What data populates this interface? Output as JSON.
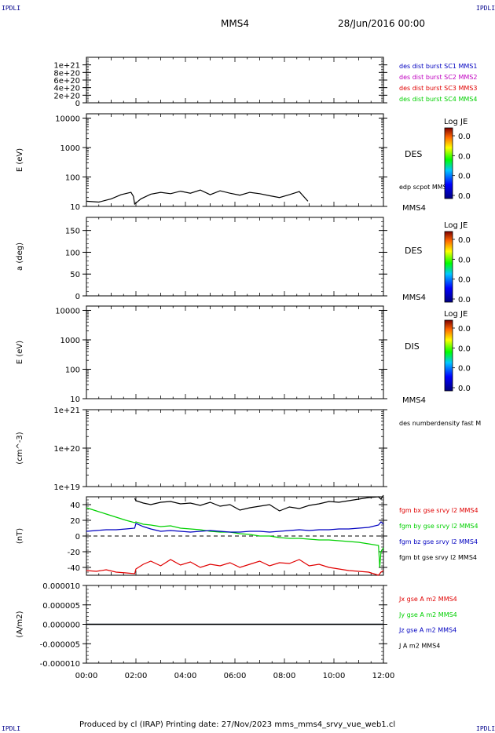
{
  "corners": {
    "tl": "IPDLI",
    "tr": "IPDLI",
    "bl": "IPDLI",
    "br": "IPDLI"
  },
  "header": {
    "spacecraft": "MMS4",
    "date": "28/Jun/2016 00:00"
  },
  "footer": {
    "text": "Produced by cl (IRAP)   Printing date: 27/Nov/2023   mms_mms4_srvy_vue_web1.cl"
  },
  "colors": {
    "red": "#e00000",
    "green": "#00d000",
    "blue": "#0000c0",
    "magenta": "#c000c0",
    "black": "#000000"
  },
  "time_axis": {
    "ticks": [
      "00:00",
      "02:00",
      "04:00",
      "06:00",
      "08:00",
      "10:00",
      "12:00"
    ],
    "range_hours": [
      0,
      12
    ]
  },
  "chart_data": [
    {
      "type": "line",
      "panel": "des-dist-burst",
      "ylim": [
        0,
        1.2e+21
      ],
      "ytick_labels": [
        "1e+21",
        "8e+20",
        "6e+20",
        "4e+20",
        "2e+20",
        "0"
      ],
      "ytick_values": [
        1e+21,
        8e+20,
        6e+20,
        4e+20,
        2e+20,
        0
      ],
      "reference_line": 0,
      "legend": [
        {
          "label": "des dist burst SC1 MMS1",
          "color": "#0000c0"
        },
        {
          "label": "des dist burst SC2 MMS2",
          "color": "#c000c0"
        },
        {
          "label": "des dist burst SC3 MMS3",
          "color": "#e00000"
        },
        {
          "label": "des dist burst SC4 MMS4",
          "color": "#00d000"
        }
      ]
    },
    {
      "type": "heatmap",
      "panel": "des-energy",
      "ylabel": "E (eV)",
      "yscale": "log",
      "ylim": [
        10,
        14000
      ],
      "ytick_labels": [
        "10000",
        "1000",
        "100",
        "10"
      ],
      "ytick_values": [
        10000,
        1000,
        100,
        10
      ],
      "label": "DES",
      "spacecraft": "MMS4",
      "colorbar": {
        "title": "Log JE",
        "ticks": [
          "0.0",
          "0.0",
          "0.0",
          "0.0"
        ]
      },
      "overlay": {
        "label": "edp scpot MMS4",
        "time_range_hours": [
          0,
          8.95
        ],
        "x_hours": [
          0,
          0.5,
          1.0,
          1.4,
          1.8,
          1.9,
          1.95,
          2.0,
          2.2,
          2.6,
          3.0,
          3.4,
          3.8,
          4.2,
          4.6,
          5.0,
          5.4,
          5.8,
          6.2,
          6.6,
          7.0,
          7.4,
          7.8,
          8.2,
          8.6,
          8.95
        ],
        "y_ev": [
          15,
          14,
          18,
          25,
          30,
          22,
          12,
          13,
          18,
          26,
          30,
          27,
          33,
          28,
          36,
          25,
          34,
          28,
          24,
          30,
          27,
          23,
          20,
          25,
          32,
          15
        ]
      }
    },
    {
      "type": "heatmap",
      "panel": "des-pitch",
      "ylabel": "a (deg)",
      "ylim": [
        0,
        180
      ],
      "ytick_labels": [
        "150",
        "100",
        "50",
        "0"
      ],
      "ytick_values": [
        150,
        100,
        50,
        0
      ],
      "label": "DES",
      "spacecraft": "MMS4",
      "colorbar": {
        "title": "Log JE",
        "ticks": [
          "0.0",
          "0.0",
          "0.0",
          "0.0"
        ]
      }
    },
    {
      "type": "heatmap",
      "panel": "dis-energy",
      "ylabel": "E (eV)",
      "yscale": "log",
      "ylim": [
        10,
        14000
      ],
      "ytick_labels": [
        "10000",
        "1000",
        "100",
        "10"
      ],
      "ytick_values": [
        10000,
        1000,
        100,
        10
      ],
      "label": "DIS",
      "spacecraft": "MMS4",
      "colorbar": {
        "title": "Log JE",
        "ticks": [
          "0.0",
          "0.0",
          "0.0",
          "0.0"
        ]
      }
    },
    {
      "type": "line",
      "panel": "density",
      "ylabel": "(cm^-3)",
      "yscale": "log",
      "ylim": [
        1e+19,
        1e+21
      ],
      "ytick_labels": [
        "1e+21",
        "1e+20",
        "1e+19"
      ],
      "ytick_values": [
        1e+21,
        1e+20,
        1e+19
      ],
      "legend": [
        {
          "label": "des numberdensity fast M",
          "color": "#000000"
        }
      ]
    },
    {
      "type": "line",
      "panel": "fgm",
      "ylabel": "(nT)",
      "ylim": [
        -50,
        50
      ],
      "ytick_labels": [
        "40",
        "20",
        "0",
        "-20",
        "-40"
      ],
      "ytick_values": [
        40,
        20,
        0,
        -20,
        -40
      ],
      "reference_line": 0,
      "series": [
        {
          "name": "fgm bx gse srvy l2 MMS4",
          "color": "#e00000",
          "x": [
            0,
            0.4,
            0.8,
            1.2,
            1.6,
            1.95,
            2.0,
            2.3,
            2.6,
            3.0,
            3.4,
            3.8,
            4.2,
            4.6,
            5.0,
            5.4,
            5.8,
            6.2,
            6.6,
            7.0,
            7.4,
            7.8,
            8.2,
            8.6,
            9.0,
            9.4,
            9.8,
            10.2,
            10.6,
            11.0,
            11.4,
            11.8,
            11.9,
            12.0
          ],
          "y": [
            -44,
            -45,
            -43,
            -46,
            -47,
            -48,
            -42,
            -36,
            -32,
            -38,
            -30,
            -37,
            -33,
            -40,
            -36,
            -38,
            -34,
            -40,
            -36,
            -32,
            -38,
            -34,
            -35,
            -30,
            -38,
            -36,
            -40,
            -42,
            -44,
            -45,
            -46,
            -50,
            -46,
            -44
          ]
        },
        {
          "name": "fgm by gse srvy l2 MMS4",
          "color": "#00d000",
          "x": [
            0,
            0.4,
            0.8,
            1.2,
            1.6,
            1.95,
            2.0,
            2.3,
            2.6,
            3.0,
            3.4,
            3.8,
            4.2,
            4.6,
            5.0,
            5.4,
            5.8,
            6.2,
            6.6,
            7.0,
            7.4,
            7.8,
            8.2,
            8.6,
            9.0,
            9.4,
            9.8,
            10.2,
            10.6,
            11.0,
            11.4,
            11.8,
            11.85,
            11.9,
            12.0
          ],
          "y": [
            36,
            32,
            28,
            24,
            20,
            17,
            18,
            15,
            14,
            12,
            13,
            10,
            9,
            8,
            6,
            5,
            5,
            3,
            2,
            0,
            0,
            -2,
            -3,
            -3,
            -4,
            -5,
            -5,
            -6,
            -7,
            -8,
            -10,
            -12,
            -40,
            -20,
            -15
          ]
        },
        {
          "name": "fgm bz gse srvy l2 MMS4",
          "color": "#0000c0",
          "x": [
            0,
            0.4,
            0.8,
            1.2,
            1.6,
            1.95,
            2.0,
            2.3,
            2.6,
            3.0,
            3.4,
            3.8,
            4.2,
            4.6,
            5.0,
            5.4,
            5.8,
            6.2,
            6.6,
            7.0,
            7.4,
            7.8,
            8.2,
            8.6,
            9.0,
            9.4,
            9.8,
            10.2,
            10.6,
            11.0,
            11.4,
            11.8,
            11.9,
            12.0
          ],
          "y": [
            6,
            7,
            8,
            8,
            9,
            10,
            16,
            12,
            9,
            6,
            7,
            6,
            5,
            6,
            7,
            6,
            5,
            5,
            6,
            6,
            5,
            6,
            7,
            8,
            7,
            8,
            8,
            9,
            9,
            10,
            11,
            14,
            18,
            15
          ]
        },
        {
          "name": "fgm bt gse srvy l2 MMS4",
          "color": "#000000",
          "x": [
            1.95,
            2.0,
            2.3,
            2.6,
            3.0,
            3.4,
            3.8,
            4.2,
            4.6,
            5.0,
            5.4,
            5.8,
            6.2,
            6.6,
            7.0,
            7.4,
            7.8,
            8.2,
            8.6,
            9.0,
            9.4,
            9.8,
            10.2,
            10.6,
            11.0,
            11.4,
            11.8,
            11.9,
            12.0
          ],
          "y": [
            48,
            45,
            42,
            40,
            43,
            44,
            41,
            42,
            39,
            43,
            38,
            40,
            33,
            36,
            38,
            40,
            32,
            37,
            35,
            39,
            41,
            44,
            43,
            45,
            47,
            49,
            50,
            47,
            52
          ]
        }
      ]
    },
    {
      "type": "line",
      "panel": "current",
      "ylabel": "(A/m2)",
      "ylim": [
        -1e-05,
        1e-05
      ],
      "ytick_labels": [
        "0.000010",
        "0.000005",
        "0.000000",
        "-0.000005",
        "-0.000010"
      ],
      "ytick_values": [
        1e-05,
        5e-06,
        0,
        -5e-06,
        -1e-05
      ],
      "series": [
        {
          "name": "Jx gse A m2 MMS4",
          "color": "#e00000",
          "x": [
            0,
            12
          ],
          "y": [
            0,
            0
          ]
        },
        {
          "name": "Jy gse A m2 MMS4",
          "color": "#00d000",
          "x": [
            0,
            12
          ],
          "y": [
            0,
            0
          ]
        },
        {
          "name": "Jz gse A m2 MMS4",
          "color": "#0000c0",
          "x": [
            0,
            12
          ],
          "y": [
            0,
            0
          ]
        },
        {
          "name": "J A m2 MMS4",
          "color": "#000000",
          "x": [
            0,
            12
          ],
          "y": [
            0,
            0
          ]
        }
      ]
    }
  ]
}
